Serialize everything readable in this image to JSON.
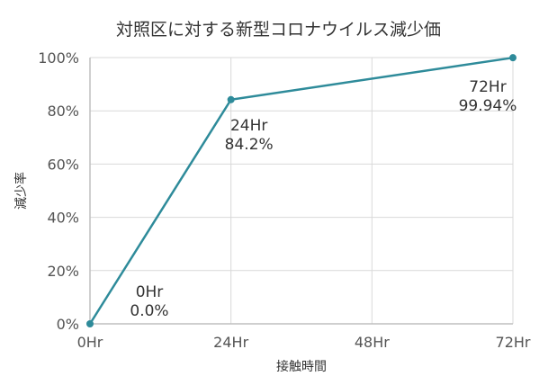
{
  "chart_data": {
    "type": "line",
    "title": "対照区に対する新型コロナウイルス減少価",
    "xlabel": "接触時間",
    "ylabel": "減少率",
    "categories": [
      "0Hr",
      "24Hr",
      "48Hr",
      "72Hr"
    ],
    "x": [
      0,
      24,
      72
    ],
    "y": [
      0.0,
      84.2,
      99.94
    ],
    "data_labels": [
      {
        "x_text": "0Hr",
        "value_text": "0.0%"
      },
      {
        "x_text": "24Hr",
        "value_text": "84.2%"
      },
      {
        "x_text": "72Hr",
        "value_text": "99.94%"
      }
    ],
    "xlim": [
      0,
      72
    ],
    "ylim": [
      0,
      100
    ],
    "y_ticks": [
      "0%",
      "20%",
      "40%",
      "60%",
      "80%",
      "100%"
    ],
    "grid": true,
    "line_color": "#2e8b9a",
    "grid_color": "#d9d9d9",
    "axis_color": "#bfbfbf"
  }
}
